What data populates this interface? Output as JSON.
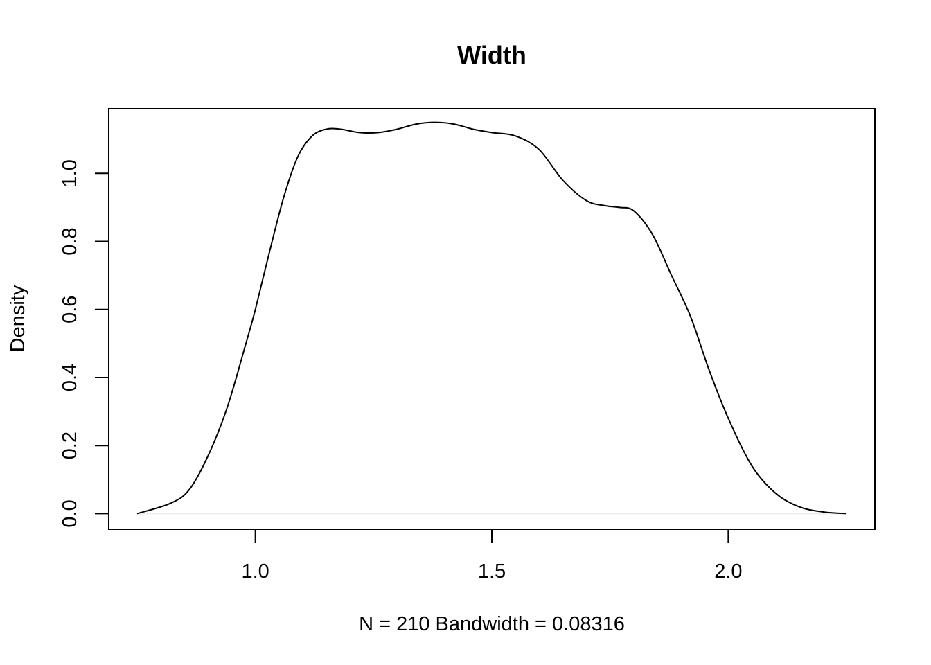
{
  "chart_data": {
    "type": "line",
    "title": "Width",
    "xlabel": "N = 210   Bandwidth = 0.08316",
    "ylabel": "Density",
    "xlim": [
      0.69,
      2.31
    ],
    "ylim": [
      -0.046,
      1.19
    ],
    "x_ticks": [
      1.0,
      1.5,
      2.0
    ],
    "x_tick_labels": [
      "1.0",
      "1.5",
      "2.0"
    ],
    "y_ticks": [
      0.0,
      0.2,
      0.4,
      0.6,
      0.8,
      1.0
    ],
    "y_tick_labels": [
      "0.0",
      "0.2",
      "0.4",
      "0.6",
      "0.8",
      "1.0"
    ],
    "grid": false,
    "zero_line": true,
    "series": [
      {
        "x": [
          0.75,
          0.82,
          0.86,
          0.9,
          0.94,
          0.98,
          1.0,
          1.03,
          1.06,
          1.09,
          1.12,
          1.15,
          1.18,
          1.22,
          1.26,
          1.3,
          1.34,
          1.38,
          1.42,
          1.46,
          1.5,
          1.55,
          1.6,
          1.65,
          1.7,
          1.74,
          1.77,
          1.8,
          1.84,
          1.88,
          1.92,
          1.96,
          2.0,
          2.05,
          2.1,
          2.15,
          2.2,
          2.25
        ],
        "y": [
          0.0,
          0.03,
          0.07,
          0.17,
          0.31,
          0.5,
          0.6,
          0.77,
          0.93,
          1.05,
          1.11,
          1.13,
          1.13,
          1.12,
          1.12,
          1.13,
          1.145,
          1.15,
          1.145,
          1.13,
          1.12,
          1.11,
          1.07,
          0.98,
          0.92,
          0.905,
          0.9,
          0.89,
          0.82,
          0.7,
          0.58,
          0.42,
          0.28,
          0.14,
          0.06,
          0.02,
          0.005,
          0.0
        ]
      }
    ]
  }
}
